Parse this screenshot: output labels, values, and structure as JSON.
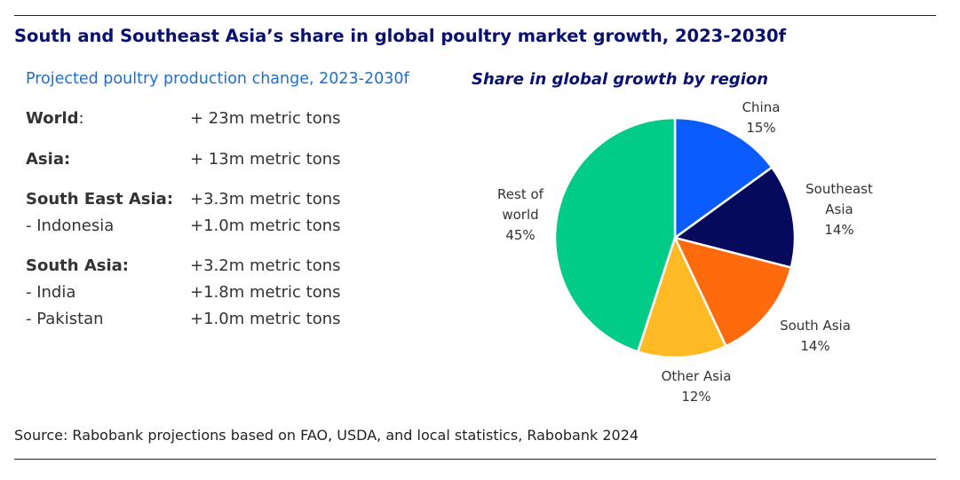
{
  "header": {
    "title": "South and Southeast Asia’s share in global poultry market growth, 2023-2030f"
  },
  "production": {
    "title": "Projected poultry production change, 2023-2030f",
    "rows": [
      {
        "label": "World",
        "suffix": ":",
        "value": "+ 23m metric tons",
        "bold": true
      },
      {
        "label": "Asia:",
        "suffix": "",
        "value": "+ 13m metric tons",
        "bold": true
      },
      {
        "label": "South East Asia:",
        "suffix": "",
        "value": "+3.3m metric tons",
        "bold": true
      },
      {
        "label": "- Indonesia",
        "suffix": "",
        "value": "+1.0m metric tons",
        "bold": false
      },
      {
        "label": "South Asia:",
        "suffix": "",
        "value": "+3.2m metric tons",
        "bold": true
      },
      {
        "label": "- India",
        "suffix": "",
        "value": "+1.8m metric tons",
        "bold": false
      },
      {
        "label": "- Pakistan",
        "suffix": "",
        "value": "+1.0m metric tons",
        "bold": false
      }
    ]
  },
  "chart_data": {
    "type": "pie",
    "title": "Share in global growth by region",
    "slices": [
      {
        "label": "China",
        "value": 15,
        "value_label": "15%",
        "color": "#0a5cff"
      },
      {
        "label": "Southeast Asia",
        "value": 14,
        "value_label": "14%",
        "color": "#050a5c"
      },
      {
        "label": "South Asia",
        "value": 14,
        "value_label": "14%",
        "color": "#ff6a0d"
      },
      {
        "label": "Other Asia",
        "value": 12,
        "value_label": "12%",
        "color": "#ffba26"
      },
      {
        "label": "Rest of world",
        "value": 45,
        "value_label": "45%",
        "color": "#00cc88"
      }
    ],
    "start": "12 o'clock",
    "direction": "clockwise"
  },
  "footer": {
    "source": "Source: Rabobank projections based on FAO, USDA, and local statistics, Rabobank 2024"
  }
}
